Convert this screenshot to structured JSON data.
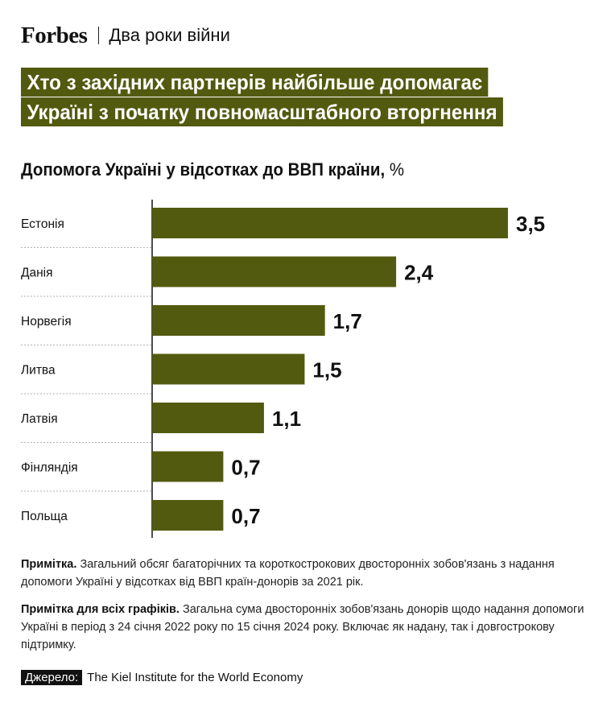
{
  "header": {
    "brand": "Forbes",
    "rubric": "Два роки війни"
  },
  "headline": {
    "line1": "Хто з західних партнерів найбільше допомагає",
    "line2": "Україні з початку повномасштабного вторгнення"
  },
  "colors": {
    "bar": "#525a0f",
    "headline_bg": "#525a0f",
    "text": "#111111"
  },
  "chart_data": {
    "type": "bar",
    "orientation": "horizontal",
    "title": "Допомога Україні у відсотках до ВВП країни",
    "unit": "%",
    "categories": [
      "Естонія",
      "Данія",
      "Норвегія",
      "Литва",
      "Латвія",
      "Фінляндія",
      "Польща"
    ],
    "values": [
      3.5,
      2.4,
      1.7,
      1.5,
      1.1,
      0.7,
      0.7
    ],
    "value_labels": [
      "3,5",
      "2,4",
      "1,7",
      "1,5",
      "1,1",
      "0,7",
      "0,7"
    ],
    "grid": false,
    "legend": "none"
  },
  "notes": {
    "note1_label": "Примітка.",
    "note1_text": "Загальний обсяг багаторічних та короткострокових двосторонніх зобов'язань з надання допомоги Україні у відсотках від ВВП країн-донорів за 2021 рік.",
    "note2_label": "Примітка для всіх графіків.",
    "note2_text": "Загальна сума двосторонніх зобов'язань донорів щодо надання допомоги Україні в період з 24 січня 2022 року по 15 січня 2024 року. Включає як надану, так і довгострокову підтримку."
  },
  "source": {
    "label": "Джерело:",
    "text": "The Kiel Institute for the World Economy"
  }
}
